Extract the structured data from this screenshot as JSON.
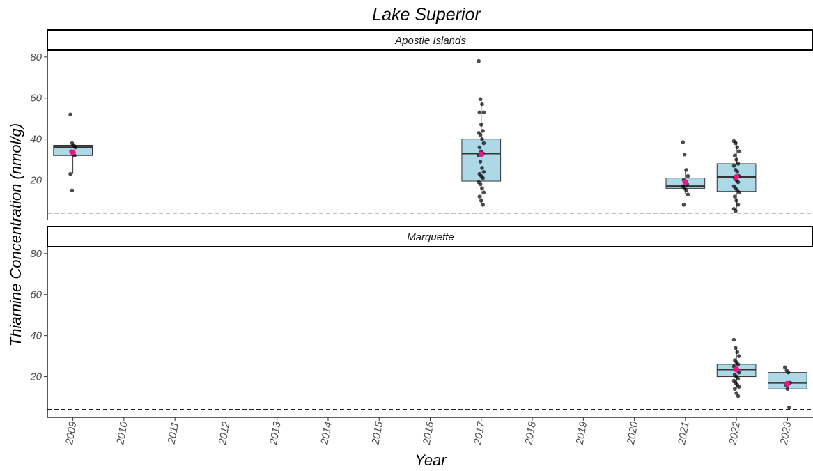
{
  "chart_data": {
    "type": "box",
    "title": "Lake Superior",
    "xlabel": "Year",
    "ylabel": "Thiamine Concentration (nmol/g)",
    "categories": [
      "2009",
      "2010",
      "2011",
      "2012",
      "2013",
      "2014",
      "2015",
      "2016",
      "2017",
      "2018",
      "2019",
      "2020",
      "2021",
      "2022",
      "2023"
    ],
    "yticks": [
      20,
      40,
      60,
      80
    ],
    "reference_line": 4,
    "colors": {
      "box_fill": "#add8e6",
      "box_stroke": "#333333",
      "points": "#000000",
      "mean": "#e6198c"
    },
    "panels": [
      {
        "name": "Apostle Islands",
        "ylim": [
          0.5,
          83
        ],
        "boxes": [
          {
            "year": "2009",
            "min": 23,
            "q1": 32,
            "median": 36,
            "q3": 37,
            "max": 38,
            "mean": 33.5,
            "points": [
              52,
              38,
              37,
              36,
              34,
              33,
              32,
              23,
              15
            ]
          },
          {
            "year": "2017",
            "min": 8,
            "q1": 19.5,
            "median": 33,
            "q3": 40,
            "max": 59.5,
            "mean": 32.5,
            "points": [
              78,
              59.5,
              57,
              53,
              53,
              47,
              44,
              43,
              42,
              40,
              38,
              36,
              34,
              33,
              32,
              29,
              26,
              24,
              23,
              22,
              21,
              19,
              18,
              16,
              14,
              12,
              10,
              8
            ]
          },
          {
            "year": "2021",
            "min": 13,
            "q1": 16,
            "median": 17,
            "q3": 21,
            "max": 25,
            "mean": 19,
            "points": [
              38.5,
              32.5,
              25,
              22,
              20,
              19,
              18,
              17,
              16,
              15,
              13,
              8
            ]
          },
          {
            "year": "2022",
            "min": 5,
            "q1": 14.5,
            "median": 21.5,
            "q3": 28,
            "max": 39,
            "mean": 21.5,
            "points": [
              39,
              38,
              36,
              34,
              32,
              30,
              28,
              27,
              25,
              24,
              22,
              21,
              20,
              19,
              17,
              16,
              15,
              14,
              12,
              10,
              8,
              6,
              5
            ]
          }
        ]
      },
      {
        "name": "Marquette",
        "ylim": [
          0.5,
          83
        ],
        "boxes": [
          {
            "year": "2022",
            "min": 14,
            "q1": 20,
            "median": 23.5,
            "q3": 26,
            "max": 34,
            "mean": 23.5,
            "points": [
              38,
              34,
              32,
              30,
              28,
              27,
              26,
              25,
              24,
              23,
              22,
              21,
              20,
              19,
              18,
              17,
              16,
              15,
              14,
              12,
              10.5
            ]
          },
          {
            "year": "2023",
            "min": 14,
            "q1": 14,
            "median": 17,
            "q3": 22,
            "max": 22,
            "mean": 16.5,
            "points": [
              24.5,
              23,
              22,
              17,
              16,
              14,
              5
            ]
          }
        ]
      }
    ]
  }
}
